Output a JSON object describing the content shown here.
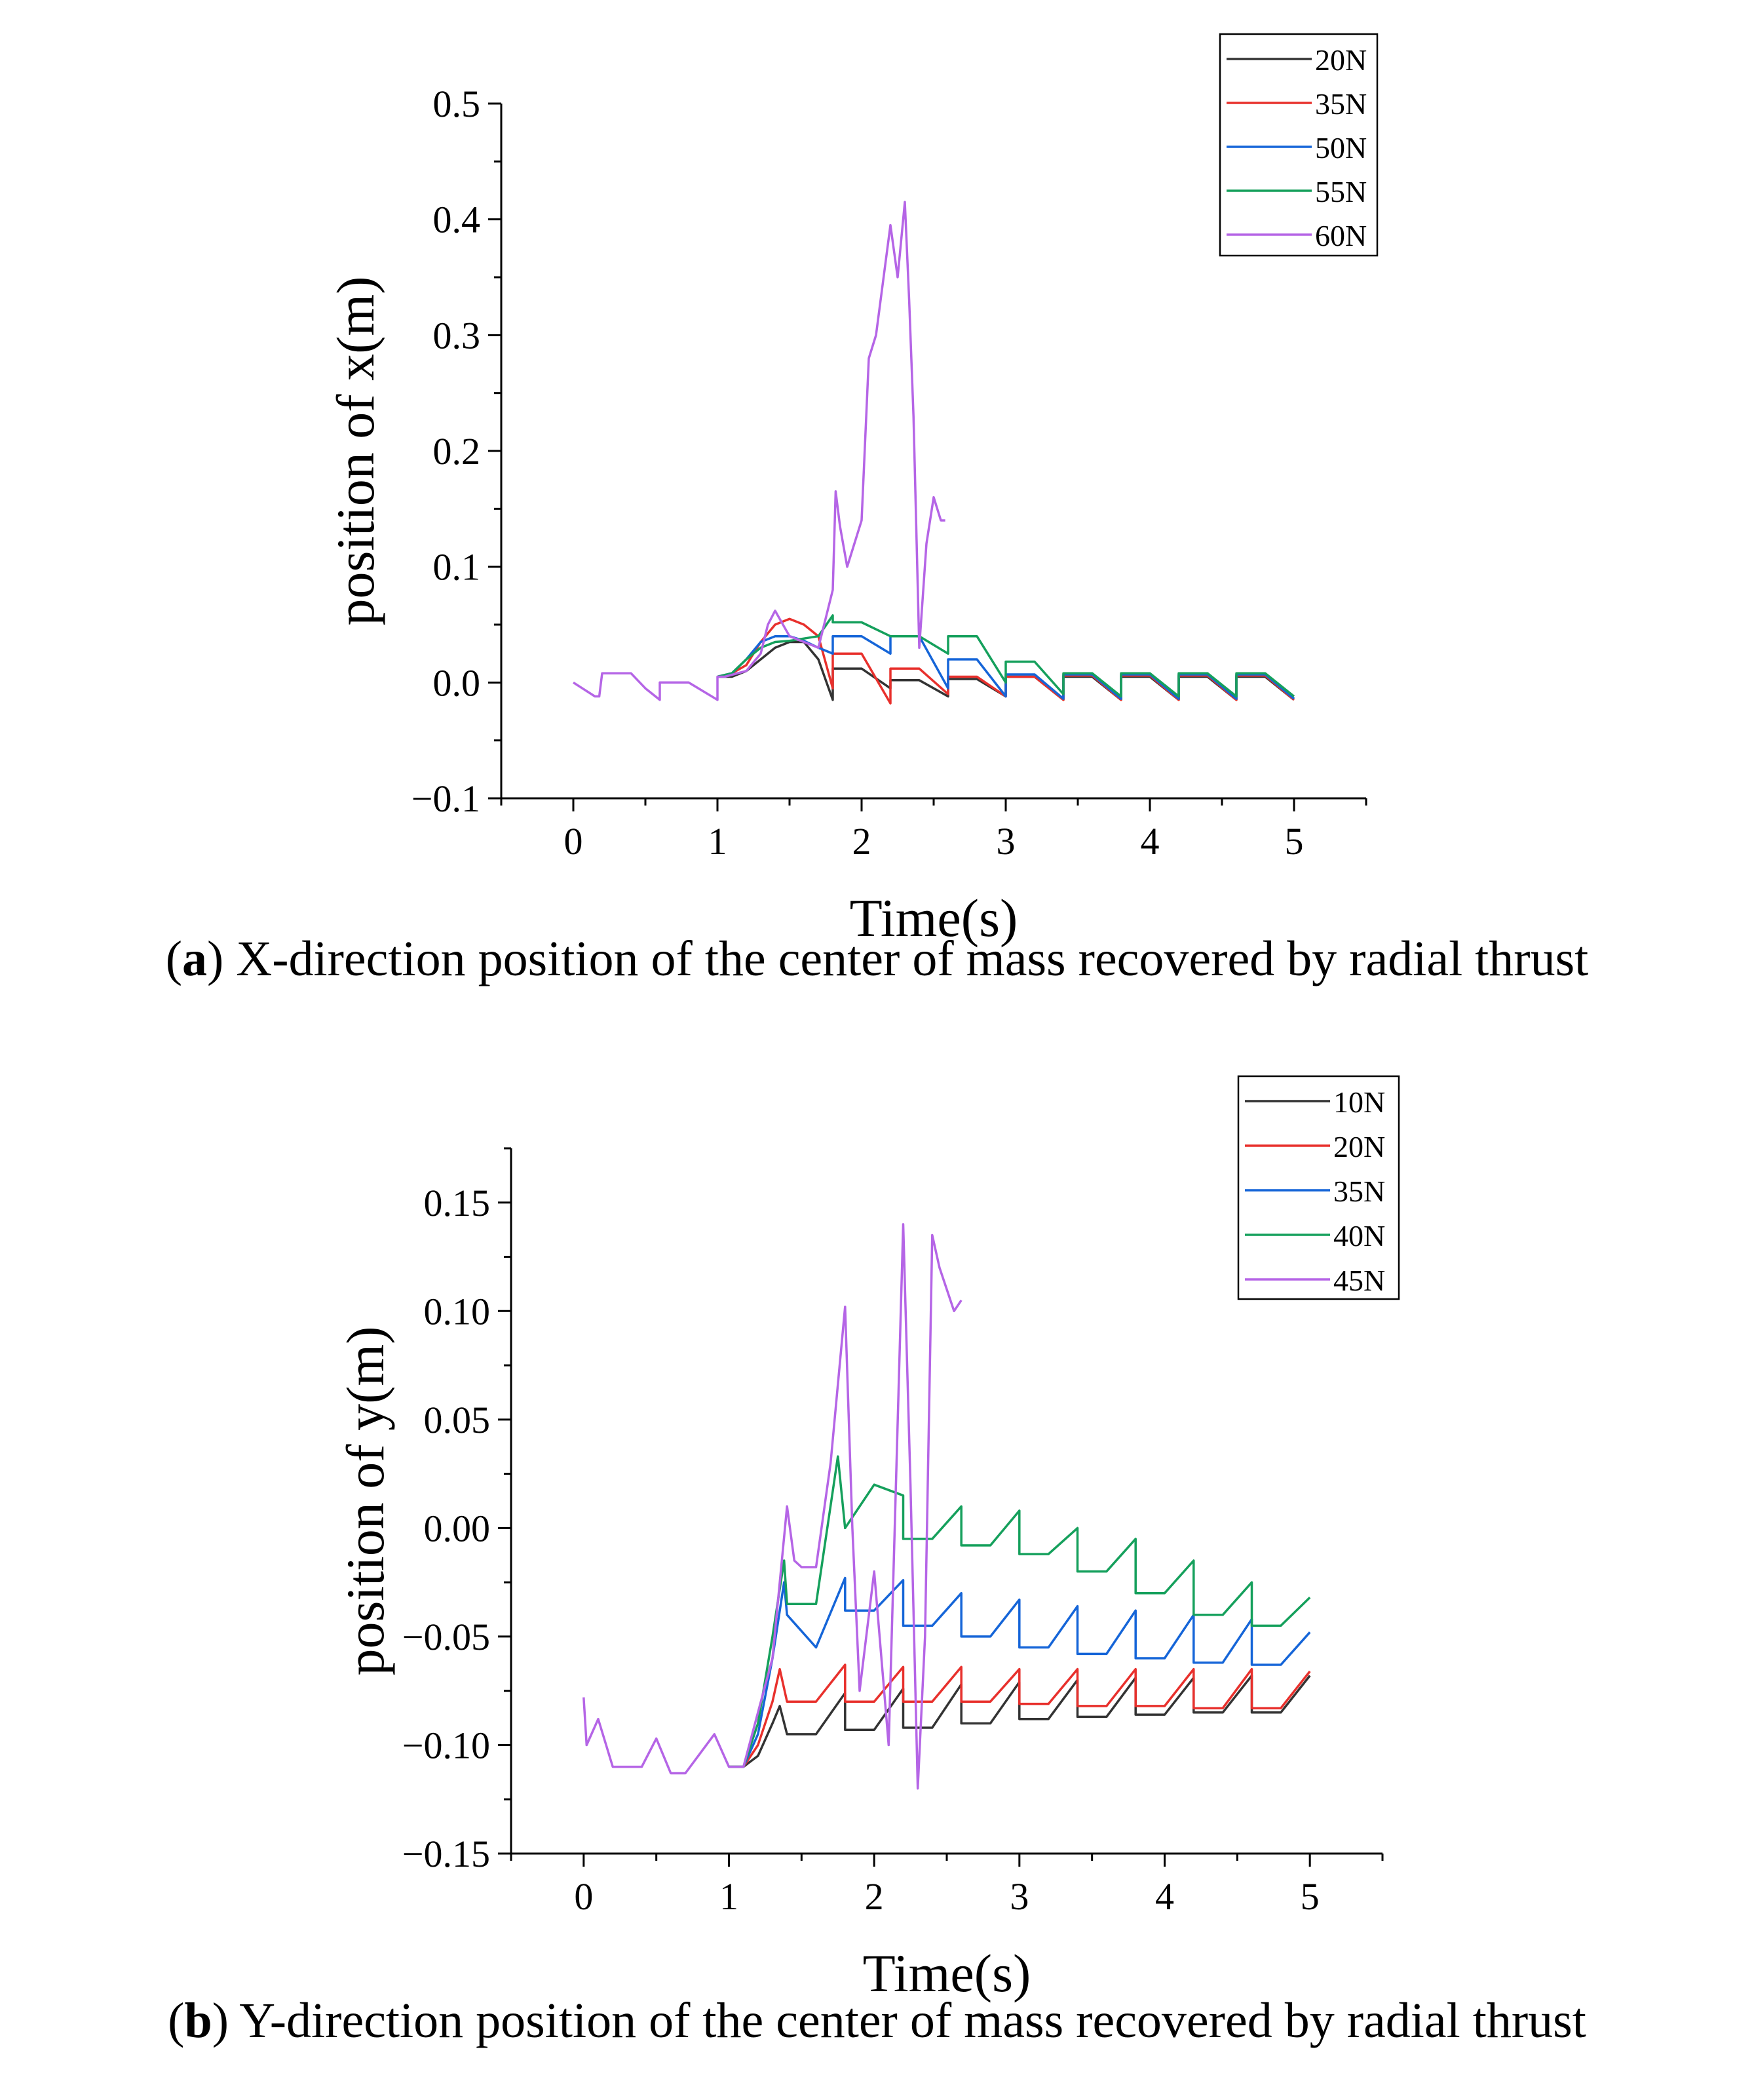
{
  "chart_data": [
    {
      "type": "line",
      "panel_label": "a",
      "caption": "X-direction position of the center of mass recovered by radial thrust",
      "xlabel": "Time(s)",
      "ylabel": "position of x(m)",
      "xlim": [
        -0.5,
        5.5
      ],
      "ylim": [
        -0.1,
        0.5
      ],
      "xticks": [
        0,
        1,
        2,
        3,
        4,
        5
      ],
      "xtick_labels": [
        "0",
        "1",
        "2",
        "3",
        "4",
        "5"
      ],
      "yticks": [
        -0.1,
        0.0,
        0.1,
        0.2,
        0.3,
        0.4,
        0.5
      ],
      "ytick_labels": [
        "−0.1",
        "0.0",
        "0.1",
        "0.2",
        "0.3",
        "0.4",
        "0.5"
      ],
      "legend_position": "top-right",
      "series": [
        {
          "name": "20N",
          "color": "#333333",
          "x": [
            1.0,
            1.1,
            1.2,
            1.3,
            1.4,
            1.5,
            1.6,
            1.7,
            1.8,
            1.8,
            2.0,
            2.2,
            2.2,
            2.4,
            2.6,
            2.6,
            2.8,
            3.0,
            3.0,
            3.2,
            3.4,
            3.4,
            3.6,
            3.8,
            3.8,
            4.0,
            4.2,
            4.2,
            4.4,
            4.6,
            4.6,
            4.8,
            5.0
          ],
          "y": [
            0.005,
            0.005,
            0.01,
            0.02,
            0.03,
            0.035,
            0.035,
            0.02,
            -0.015,
            0.012,
            0.012,
            -0.005,
            0.002,
            0.002,
            -0.012,
            0.003,
            0.003,
            -0.012,
            0.005,
            0.005,
            -0.015,
            0.005,
            0.005,
            -0.015,
            0.005,
            0.005,
            -0.015,
            0.005,
            0.005,
            -0.015,
            0.005,
            0.005,
            -0.015
          ]
        },
        {
          "name": "35N",
          "color": "#e8302c",
          "x": [
            1.0,
            1.1,
            1.2,
            1.3,
            1.4,
            1.5,
            1.6,
            1.7,
            1.8,
            1.8,
            2.0,
            2.2,
            2.2,
            2.4,
            2.6,
            2.6,
            2.8,
            3.0,
            3.0,
            3.2,
            3.4,
            3.4,
            3.6,
            3.8,
            3.8,
            4.0,
            4.2,
            4.2,
            4.4,
            4.6,
            4.6,
            4.8,
            5.0
          ],
          "y": [
            0.005,
            0.008,
            0.015,
            0.035,
            0.05,
            0.055,
            0.05,
            0.04,
            -0.005,
            0.025,
            0.025,
            -0.018,
            0.012,
            0.012,
            -0.01,
            0.005,
            0.005,
            -0.012,
            0.005,
            0.005,
            -0.015,
            0.006,
            0.006,
            -0.015,
            0.006,
            0.006,
            -0.015,
            0.006,
            0.006,
            -0.015,
            0.006,
            0.006,
            -0.015
          ]
        },
        {
          "name": "50N",
          "color": "#1565d8",
          "x": [
            1.0,
            1.1,
            1.2,
            1.3,
            1.4,
            1.5,
            1.6,
            1.7,
            1.8,
            1.8,
            2.0,
            2.2,
            2.2,
            2.4,
            2.6,
            2.6,
            2.8,
            3.0,
            3.0,
            3.2,
            3.4,
            3.4,
            3.6,
            3.8,
            3.8,
            4.0,
            4.2,
            4.2,
            4.4,
            4.6,
            4.6,
            4.8,
            5.0
          ],
          "y": [
            0.005,
            0.008,
            0.02,
            0.035,
            0.04,
            0.04,
            0.036,
            0.03,
            0.025,
            0.04,
            0.04,
            0.025,
            0.04,
            0.04,
            -0.005,
            0.02,
            0.02,
            -0.012,
            0.007,
            0.007,
            -0.014,
            0.007,
            0.007,
            -0.014,
            0.007,
            0.007,
            -0.014,
            0.007,
            0.007,
            -0.014,
            0.007,
            0.007,
            -0.014
          ]
        },
        {
          "name": "55N",
          "color": "#15a05c",
          "x": [
            1.0,
            1.1,
            1.2,
            1.3,
            1.4,
            1.5,
            1.6,
            1.7,
            1.8,
            1.8,
            2.0,
            2.2,
            2.2,
            2.4,
            2.6,
            2.6,
            2.8,
            3.0,
            3.0,
            3.2,
            3.4,
            3.4,
            3.6,
            3.8,
            3.8,
            4.0,
            4.2,
            4.2,
            4.4,
            4.6,
            4.6,
            4.8,
            5.0
          ],
          "y": [
            0.005,
            0.008,
            0.02,
            0.03,
            0.035,
            0.036,
            0.038,
            0.04,
            0.058,
            0.052,
            0.052,
            0.04,
            0.04,
            0.04,
            0.025,
            0.04,
            0.04,
            0.0,
            0.018,
            0.018,
            -0.01,
            0.008,
            0.008,
            -0.012,
            0.008,
            0.008,
            -0.012,
            0.008,
            0.008,
            -0.012,
            0.008,
            0.008,
            -0.012
          ]
        },
        {
          "name": "60N",
          "color": "#b565e6",
          "x": [
            0.0,
            0.15,
            0.18,
            0.2,
            0.4,
            0.5,
            0.6,
            0.6,
            0.8,
            1.0,
            1.0,
            1.05,
            1.2,
            1.3,
            1.35,
            1.4,
            1.5,
            1.6,
            1.7,
            1.8,
            1.82,
            1.85,
            1.9,
            2.0,
            2.05,
            2.1,
            2.2,
            2.25,
            2.3,
            2.33,
            2.36,
            2.4,
            2.45,
            2.5,
            2.55,
            2.58
          ],
          "y": [
            0.0,
            -0.012,
            -0.012,
            0.008,
            0.008,
            -0.005,
            -0.015,
            0.0,
            0.0,
            -0.015,
            0.005,
            0.005,
            0.01,
            0.025,
            0.05,
            0.062,
            0.04,
            0.035,
            0.03,
            0.08,
            0.165,
            0.135,
            0.1,
            0.14,
            0.28,
            0.3,
            0.395,
            0.35,
            0.415,
            0.33,
            0.23,
            0.03,
            0.12,
            0.16,
            0.14,
            0.14
          ]
        }
      ]
    },
    {
      "type": "line",
      "panel_label": "b",
      "caption": "Y-direction position of the center of mass recovered by radial thrust",
      "xlabel": "Time(s)",
      "ylabel": "position of y(m)",
      "xlim": [
        -0.5,
        5.5
      ],
      "ylim": [
        -0.15,
        0.175
      ],
      "xticks": [
        0,
        1,
        2,
        3,
        4,
        5
      ],
      "xtick_labels": [
        "0",
        "1",
        "2",
        "3",
        "4",
        "5"
      ],
      "yticks": [
        -0.15,
        -0.1,
        -0.05,
        0.0,
        0.05,
        0.1,
        0.15
      ],
      "ytick_labels": [
        "−0.15",
        "−0.10",
        "−0.05",
        "0.00",
        "0.05",
        "0.10",
        "0.15"
      ],
      "legend_position": "top-right",
      "series": [
        {
          "name": "10N",
          "color": "#333333",
          "x": [
            1.0,
            1.1,
            1.2,
            1.3,
            1.35,
            1.4,
            1.6,
            1.8,
            1.8,
            2.0,
            2.2,
            2.2,
            2.4,
            2.6,
            2.6,
            2.8,
            3.0,
            3.0,
            3.2,
            3.4,
            3.4,
            3.6,
            3.8,
            3.8,
            4.0,
            4.2,
            4.2,
            4.4,
            4.6,
            4.6,
            4.8,
            5.0
          ],
          "y": [
            -0.11,
            -0.11,
            -0.105,
            -0.09,
            -0.082,
            -0.095,
            -0.095,
            -0.076,
            -0.093,
            -0.093,
            -0.074,
            -0.092,
            -0.092,
            -0.072,
            -0.09,
            -0.09,
            -0.071,
            -0.088,
            -0.088,
            -0.07,
            -0.087,
            -0.087,
            -0.069,
            -0.086,
            -0.086,
            -0.069,
            -0.085,
            -0.085,
            -0.068,
            -0.085,
            -0.085,
            -0.068
          ]
        },
        {
          "name": "20N",
          "color": "#e8302c",
          "x": [
            1.0,
            1.1,
            1.2,
            1.3,
            1.35,
            1.4,
            1.6,
            1.8,
            1.8,
            2.0,
            2.2,
            2.2,
            2.4,
            2.6,
            2.6,
            2.8,
            3.0,
            3.0,
            3.2,
            3.4,
            3.4,
            3.6,
            3.8,
            3.8,
            4.0,
            4.2,
            4.2,
            4.4,
            4.6,
            4.6,
            4.8,
            5.0
          ],
          "y": [
            -0.11,
            -0.11,
            -0.1,
            -0.08,
            -0.065,
            -0.08,
            -0.08,
            -0.063,
            -0.08,
            -0.08,
            -0.064,
            -0.08,
            -0.08,
            -0.064,
            -0.08,
            -0.08,
            -0.065,
            -0.081,
            -0.081,
            -0.065,
            -0.082,
            -0.082,
            -0.065,
            -0.082,
            -0.082,
            -0.065,
            -0.083,
            -0.083,
            -0.065,
            -0.083,
            -0.083,
            -0.066
          ]
        },
        {
          "name": "35N",
          "color": "#1565d8",
          "x": [
            1.0,
            1.1,
            1.2,
            1.3,
            1.38,
            1.4,
            1.6,
            1.8,
            1.8,
            2.0,
            2.2,
            2.2,
            2.4,
            2.6,
            2.6,
            2.8,
            3.0,
            3.0,
            3.2,
            3.4,
            3.4,
            3.6,
            3.8,
            3.8,
            4.0,
            4.2,
            4.2,
            4.4,
            4.6,
            4.6,
            4.8,
            5.0
          ],
          "y": [
            -0.11,
            -0.11,
            -0.095,
            -0.06,
            -0.025,
            -0.04,
            -0.055,
            -0.023,
            -0.038,
            -0.038,
            -0.024,
            -0.045,
            -0.045,
            -0.03,
            -0.05,
            -0.05,
            -0.033,
            -0.055,
            -0.055,
            -0.036,
            -0.058,
            -0.058,
            -0.038,
            -0.06,
            -0.06,
            -0.04,
            -0.062,
            -0.062,
            -0.042,
            -0.063,
            -0.063,
            -0.048
          ]
        },
        {
          "name": "40N",
          "color": "#15a05c",
          "x": [
            1.0,
            1.1,
            1.2,
            1.3,
            1.38,
            1.4,
            1.6,
            1.75,
            1.8,
            2.0,
            2.2,
            2.2,
            2.4,
            2.6,
            2.6,
            2.8,
            3.0,
            3.0,
            3.2,
            3.4,
            3.4,
            3.6,
            3.8,
            3.8,
            4.0,
            4.2,
            4.2,
            4.4,
            4.6,
            4.6,
            4.8,
            5.0
          ],
          "y": [
            -0.11,
            -0.11,
            -0.09,
            -0.05,
            -0.015,
            -0.035,
            -0.035,
            0.033,
            0.0,
            0.02,
            0.015,
            -0.005,
            -0.005,
            0.01,
            -0.008,
            -0.008,
            0.008,
            -0.012,
            -0.012,
            0.0,
            -0.02,
            -0.02,
            -0.005,
            -0.03,
            -0.03,
            -0.015,
            -0.04,
            -0.04,
            -0.025,
            -0.045,
            -0.045,
            -0.032
          ]
        },
        {
          "name": "45N",
          "color": "#b565e6",
          "x": [
            0.0,
            0.02,
            0.1,
            0.2,
            0.4,
            0.5,
            0.6,
            0.7,
            0.9,
            1.0,
            1.1,
            1.2,
            1.3,
            1.4,
            1.45,
            1.5,
            1.6,
            1.7,
            1.8,
            1.85,
            1.9,
            2.0,
            2.1,
            2.2,
            2.25,
            2.3,
            2.35,
            2.4,
            2.45,
            2.5,
            2.55,
            2.6
          ],
          "y": [
            -0.078,
            -0.1,
            -0.088,
            -0.11,
            -0.11,
            -0.097,
            -0.113,
            -0.113,
            -0.095,
            -0.11,
            -0.11,
            -0.085,
            -0.06,
            0.01,
            -0.015,
            -0.018,
            -0.018,
            0.03,
            0.102,
            0.0,
            -0.075,
            -0.02,
            -0.1,
            0.14,
            0.02,
            -0.12,
            -0.05,
            0.135,
            0.12,
            0.11,
            0.1,
            0.105
          ]
        }
      ]
    }
  ]
}
